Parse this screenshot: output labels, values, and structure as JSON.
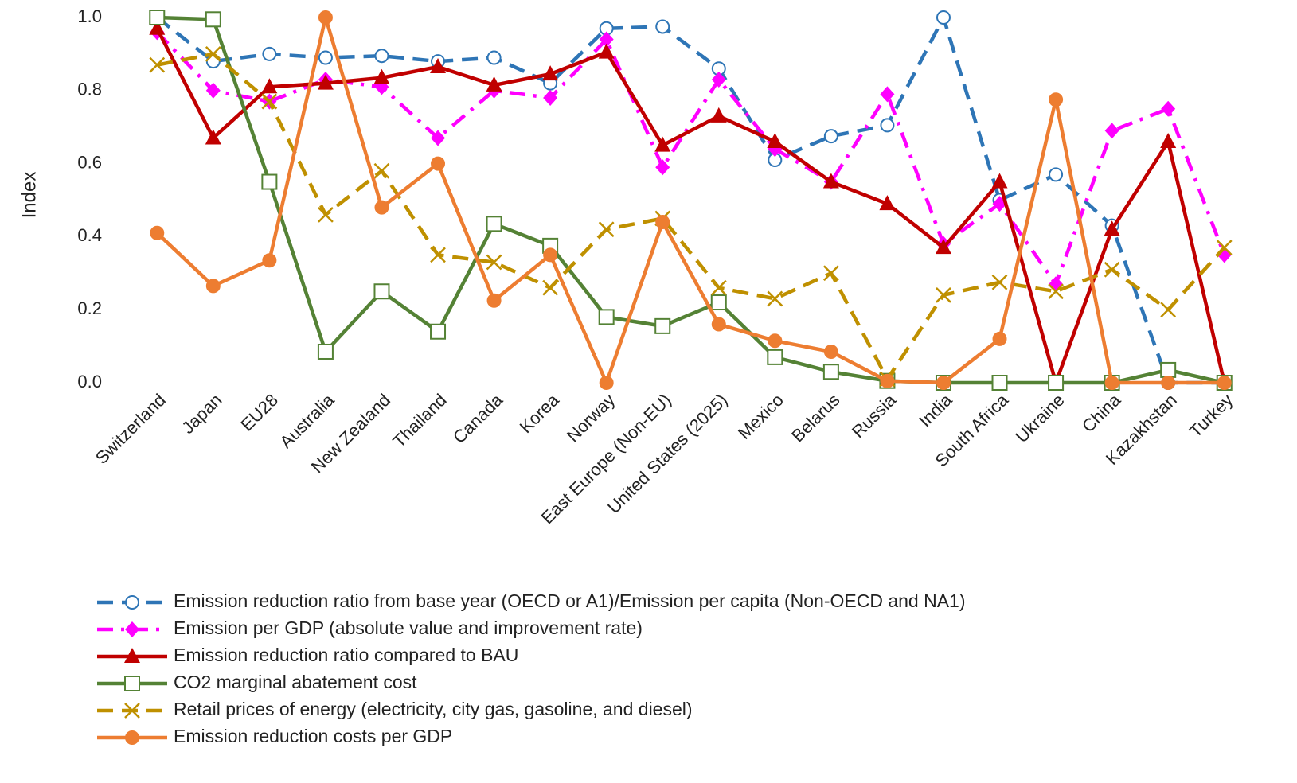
{
  "chart_data": {
    "type": "line",
    "y_label": "Index",
    "categories": [
      "Switzerland",
      "Japan",
      "EU28",
      "Australia",
      "New Zealand",
      "Thailand",
      "Canada",
      "Korea",
      "Norway",
      "East Europe (Non-EU)",
      "United States (2025)",
      "Mexico",
      "Belarus",
      "Russia",
      "India",
      "South Africa",
      "Ukraine",
      "China",
      "Kazakhstan",
      "Turkey"
    ],
    "ylim": [
      0,
      1
    ],
    "yticks": [
      {
        "value": 0,
        "label": "0.0"
      },
      0.2,
      0.4,
      0.6,
      0.8,
      {
        "value": 1,
        "label": "1.0"
      }
    ],
    "legend": "bottom",
    "series": [
      {
        "name": "Emission reduction ratio from base year (OECD or A1)/Emission per capita (Non-OECD and NA1)",
        "color": "#2e75b6",
        "line_style": "dashed",
        "marker": "circle-open",
        "values": [
          1.0,
          0.88,
          0.9,
          0.89,
          0.895,
          0.88,
          0.89,
          0.82,
          0.97,
          0.975,
          0.86,
          0.61,
          0.675,
          0.705,
          1.0,
          0.5,
          0.57,
          0.43,
          0.0,
          0.0
        ]
      },
      {
        "name": "Emission per GDP (absolute value and improvement rate)",
        "color": "#ff00ff",
        "line_style": "dash-dot",
        "marker": "diamond",
        "values": [
          0.96,
          0.8,
          0.77,
          0.83,
          0.81,
          0.67,
          0.8,
          0.78,
          0.94,
          0.59,
          0.83,
          0.64,
          0.55,
          0.79,
          0.38,
          0.49,
          0.27,
          0.69,
          0.75,
          0.35
        ]
      },
      {
        "name": "Emission reduction ratio compared to BAU",
        "color": "#c00000",
        "line_style": "solid",
        "marker": "triangle",
        "values": [
          0.97,
          0.67,
          0.81,
          0.82,
          0.835,
          0.865,
          0.815,
          0.845,
          0.905,
          0.65,
          0.73,
          0.66,
          0.55,
          0.49,
          0.37,
          0.55,
          0.0,
          0.42,
          0.66,
          0.0
        ]
      },
      {
        "name": "CO2 marginal abatement cost",
        "color": "#548235",
        "line_style": "solid",
        "marker": "square-open",
        "values": [
          1.0,
          0.995,
          0.55,
          0.085,
          0.25,
          0.14,
          0.435,
          0.375,
          0.18,
          0.155,
          0.22,
          0.07,
          0.03,
          0.005,
          0.0,
          0.0,
          0.0,
          0.0,
          0.035,
          0.0
        ]
      },
      {
        "name": "Retail prices of energy (electricity, city gas, gasoline, and diesel)",
        "color": "#bf9000",
        "line_style": "dashed",
        "marker": "x",
        "values": [
          0.87,
          0.9,
          0.77,
          0.46,
          0.58,
          0.35,
          0.33,
          0.26,
          0.42,
          0.45,
          0.26,
          0.23,
          0.3,
          0.01,
          0.24,
          0.275,
          0.25,
          0.31,
          0.2,
          0.37
        ]
      },
      {
        "name": "Emission reduction costs per GDP",
        "color": "#ed7d31",
        "line_style": "solid",
        "marker": "circle",
        "values": [
          0.41,
          0.265,
          0.335,
          1.0,
          0.48,
          0.6,
          0.225,
          0.35,
          0.0,
          0.44,
          0.16,
          0.115,
          0.085,
          0.005,
          0.0,
          0.12,
          0.775,
          0.0,
          0.0,
          0.0
        ]
      }
    ]
  }
}
